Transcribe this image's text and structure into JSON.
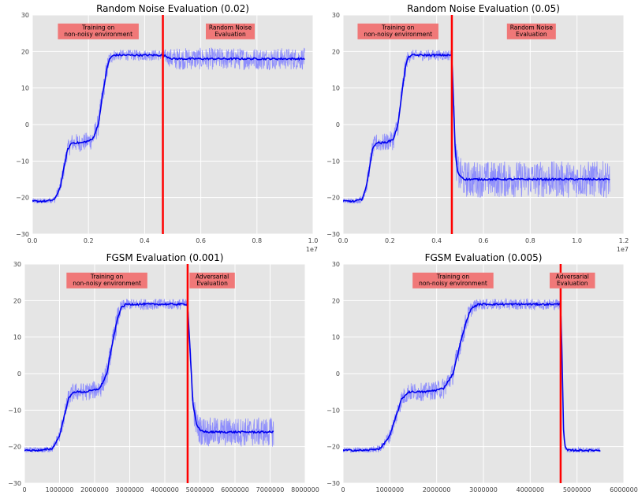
{
  "chart_data": [
    {
      "type": "line",
      "title": "Random Noise Evaluation (0.02)",
      "xlim": [
        0,
        1.0
      ],
      "ylim": [
        -30,
        30
      ],
      "x_ticks": [
        "0.0",
        "0.2",
        "0.4",
        "0.6",
        "0.8",
        "1.0"
      ],
      "y_ticks": [
        "−30",
        "−20",
        "−10",
        "0",
        "10",
        "20",
        "30"
      ],
      "x_offset_label": "1e7",
      "grid": true,
      "switch_x": 0.465,
      "annotations": [
        {
          "text": [
            "Training on",
            "non-noisy environment"
          ],
          "x": 0.235,
          "y": 25.5
        },
        {
          "text": [
            "Random Noise",
            "Evaluation"
          ],
          "x": 0.705,
          "y": 25.5
        }
      ],
      "series": [
        {
          "x": [
            0,
            0.05,
            0.08,
            0.1,
            0.115,
            0.125,
            0.14,
            0.175,
            0.2,
            0.215,
            0.235,
            0.25,
            0.265,
            0.275,
            0.29,
            0.315,
            0.4,
            0.465,
            0.5,
            0.55,
            0.6,
            0.7,
            0.8,
            0.9,
            0.97
          ],
          "y": [
            -21,
            -21,
            -20.5,
            -17,
            -11,
            -7,
            -5,
            -5,
            -4.5,
            -4,
            0,
            8,
            15,
            18,
            19,
            19,
            19,
            19,
            18,
            18,
            18,
            18,
            18,
            18,
            18
          ],
          "noise": [
            0.8,
            0.8,
            1,
            2,
            2.5,
            2.5,
            2.5,
            2.5,
            2.5,
            3,
            3,
            3,
            3,
            2,
            1.5,
            1.5,
            1.5,
            1.5,
            3,
            3,
            3,
            3,
            3,
            3,
            3
          ]
        }
      ]
    },
    {
      "type": "line",
      "title": "Random Noise Evaluation (0.05)",
      "xlim": [
        0,
        1.2
      ],
      "ylim": [
        -30,
        30
      ],
      "x_ticks": [
        "0.0",
        "0.2",
        "0.4",
        "0.6",
        "0.8",
        "1.0",
        "1.2"
      ],
      "y_ticks": [
        "−30",
        "−20",
        "−10",
        "0",
        "10",
        "20",
        "30"
      ],
      "x_offset_label": "1e7",
      "grid": true,
      "switch_x": 0.465,
      "annotations": [
        {
          "text": [
            "Training on",
            "non-noisy environment"
          ],
          "x": 0.235,
          "y": 25.5
        },
        {
          "text": [
            "Random Noise",
            "Evaluation"
          ],
          "x": 0.805,
          "y": 25.5
        }
      ],
      "series": [
        {
          "x": [
            0,
            0.05,
            0.08,
            0.1,
            0.115,
            0.125,
            0.14,
            0.175,
            0.2,
            0.215,
            0.235,
            0.25,
            0.265,
            0.275,
            0.29,
            0.315,
            0.4,
            0.465,
            0.47,
            0.48,
            0.49,
            0.5,
            0.52,
            0.6,
            0.7,
            0.8,
            0.9,
            1.0,
            1.1,
            1.14
          ],
          "y": [
            -21,
            -21,
            -20.5,
            -17,
            -11,
            -7,
            -5,
            -5,
            -4.5,
            -4,
            0,
            8,
            15,
            18,
            19,
            19,
            19,
            19,
            10,
            -8,
            -13,
            -14,
            -15,
            -15,
            -15,
            -15,
            -15,
            -15,
            -15,
            -15
          ],
          "noise": [
            0.8,
            0.8,
            1,
            2,
            2.5,
            2.5,
            2.5,
            2.5,
            2.5,
            3,
            3,
            3,
            3,
            2,
            1.5,
            1.5,
            1.5,
            1.5,
            4,
            5,
            5,
            5,
            5,
            5,
            5,
            5,
            5,
            5,
            5,
            5
          ]
        }
      ]
    },
    {
      "type": "line",
      "title": "FGSM Evaluation (0.001)",
      "xlim": [
        0,
        8000000
      ],
      "ylim": [
        -30,
        30
      ],
      "x_ticks": [
        "0",
        "1000000",
        "2000000",
        "3000000",
        "4000000",
        "5000000",
        "6000000",
        "7000000",
        "8000000"
      ],
      "y_ticks": [
        "−30",
        "−20",
        "−10",
        "0",
        "10",
        "20",
        "30"
      ],
      "grid": true,
      "switch_x": 4650000,
      "annotations": [
        {
          "text": [
            "Training on",
            "non-noisy environment"
          ],
          "x": 2350000,
          "y": 25.5
        },
        {
          "text": [
            "Adversarial",
            "Evaluation"
          ],
          "x": 5350000,
          "y": 25.5
        }
      ],
      "series": [
        {
          "x": [
            0,
            500000,
            800000,
            1000000,
            1150000,
            1250000,
            1400000,
            1750000,
            2000000,
            2150000,
            2350000,
            2500000,
            2650000,
            2750000,
            2900000,
            3150000,
            4000000,
            4650000,
            4700000,
            4800000,
            4900000,
            5000000,
            5200000,
            6000000,
            7000000,
            7100000
          ],
          "y": [
            -21,
            -21,
            -20.5,
            -17,
            -11,
            -7,
            -5,
            -5,
            -4.5,
            -4,
            0,
            8,
            15,
            18,
            19,
            19,
            19,
            19,
            10,
            -8,
            -14,
            -15.5,
            -16,
            -16,
            -16,
            -16
          ],
          "noise": [
            0.8,
            0.8,
            1,
            2,
            2.5,
            2.5,
            2.5,
            2.5,
            2.5,
            3,
            3,
            3,
            3,
            2,
            1.5,
            1.5,
            1.5,
            1.5,
            3,
            4,
            4,
            4,
            4,
            4,
            4,
            4
          ]
        }
      ]
    },
    {
      "type": "line",
      "title": "FGSM Evaluation (0.005)",
      "xlim": [
        0,
        6000000
      ],
      "ylim": [
        -30,
        30
      ],
      "x_ticks": [
        "0",
        "1000000",
        "2000000",
        "3000000",
        "4000000",
        "5000000",
        "6000000"
      ],
      "y_ticks": [
        "−30",
        "−20",
        "−10",
        "0",
        "10",
        "20",
        "30"
      ],
      "grid": true,
      "switch_x": 4650000,
      "annotations": [
        {
          "text": [
            "Training on",
            "non-noisy environment"
          ],
          "x": 2350000,
          "y": 25.5
        },
        {
          "text": [
            "Adversarial",
            "Evaluation"
          ],
          "x": 4900000,
          "y": 25.5
        }
      ],
      "series": [
        {
          "x": [
            0,
            500000,
            800000,
            1000000,
            1150000,
            1250000,
            1400000,
            1750000,
            2000000,
            2150000,
            2350000,
            2500000,
            2650000,
            2750000,
            2900000,
            3150000,
            4000000,
            4650000,
            4680000,
            4710000,
            4740000,
            4800000,
            5000000,
            5500000
          ],
          "y": [
            -21,
            -21,
            -20.5,
            -17,
            -11,
            -7,
            -5,
            -5,
            -4.5,
            -4,
            0,
            8,
            15,
            18,
            19,
            19,
            19,
            19,
            5,
            -15,
            -20,
            -21,
            -21,
            -21
          ],
          "noise": [
            0.8,
            0.8,
            1,
            2,
            2.5,
            2.5,
            2.5,
            2.5,
            2.5,
            3,
            3,
            3,
            3,
            2,
            1.5,
            1.5,
            1.5,
            1.5,
            2,
            1,
            0.8,
            0.8,
            0.8,
            0.8
          ]
        }
      ]
    }
  ],
  "colors": {
    "background": "#e5e5e5",
    "grid": "#ffffff",
    "raw_line": "#8080ff",
    "smooth_line": "#0000ee",
    "switch_line": "#ff0000",
    "annotation_box": "#f07878"
  }
}
